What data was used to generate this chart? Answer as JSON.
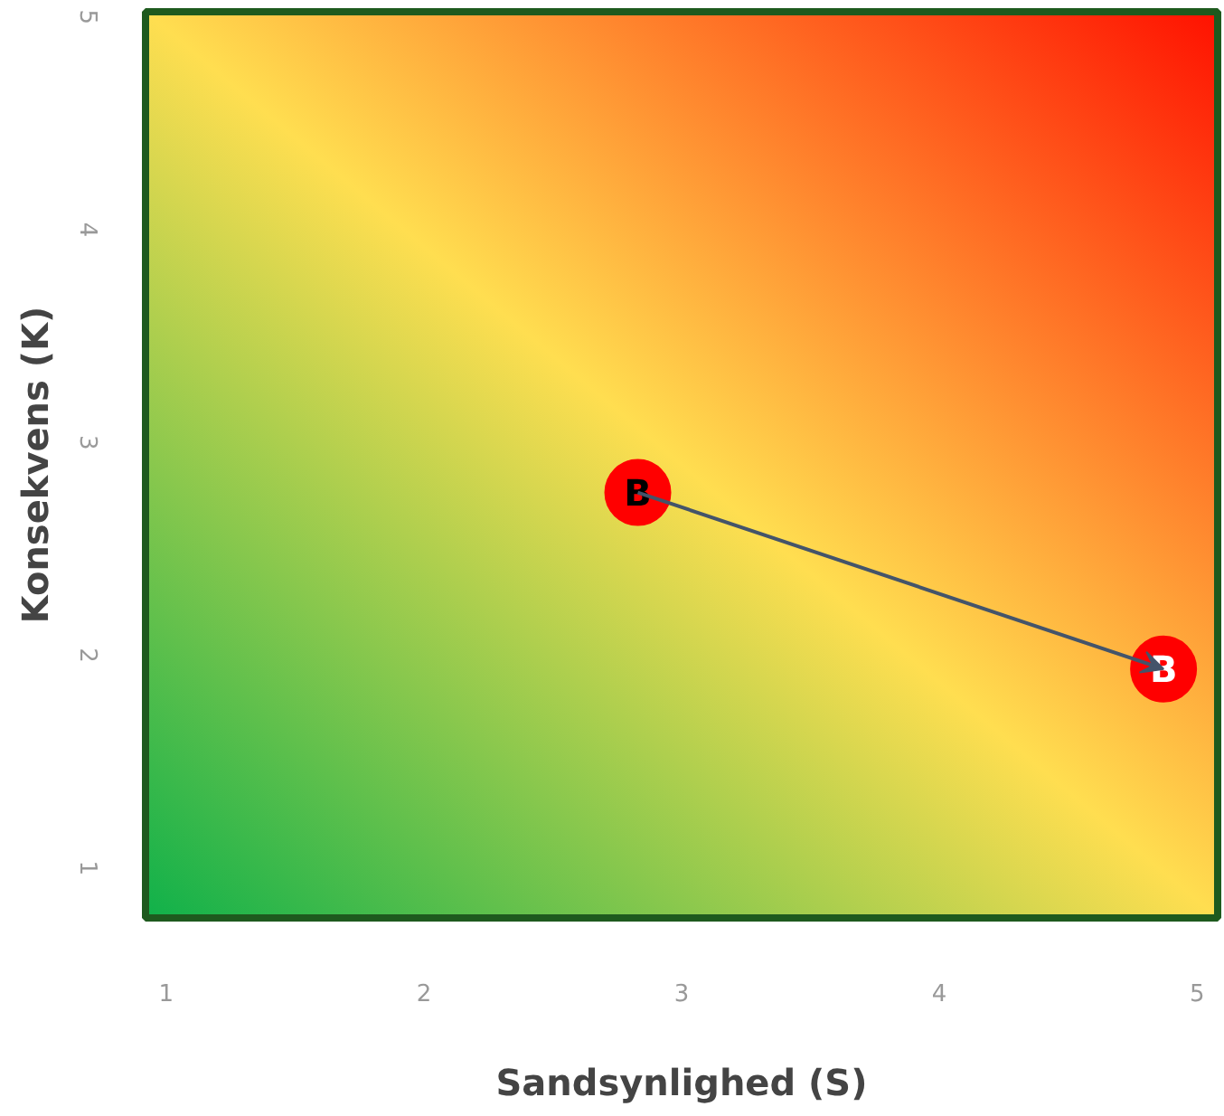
{
  "chart_data": {
    "type": "scatter",
    "xlabel": "Sandsynlighed (S)",
    "ylabel": "Konsekvens (K)",
    "x": [
      2.83,
      4.87
    ],
    "series": [
      {
        "color": "#ff0000",
        "values": [
          2.8,
          1.97
        ]
      }
    ],
    "annotations": [
      {
        "text": "B",
        "x": 2.83,
        "y": 2.8
      },
      {
        "text": "B",
        "x": 4.87,
        "y": 1.97
      }
    ],
    "xlim": [
      0.92,
      5.08
    ],
    "ylim": [
      0.8,
      5.06
    ],
    "xticks": [
      1,
      2,
      3,
      4,
      5
    ],
    "yticks": [
      1,
      2,
      3,
      4,
      5
    ],
    "marker": "circle"
  }
}
